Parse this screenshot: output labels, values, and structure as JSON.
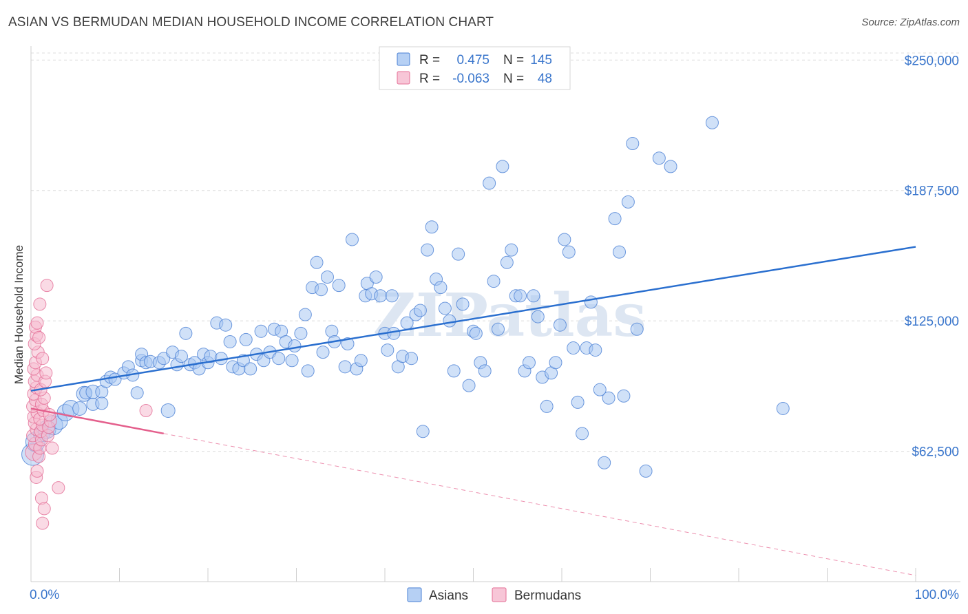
{
  "title": "ASIAN VS BERMUDAN MEDIAN HOUSEHOLD INCOME CORRELATION CHART",
  "source": "Source: ZipAtlas.com",
  "watermark": "ZIPatlas",
  "colors": {
    "asian_fill": "#a9c8f2",
    "asian_stroke": "#4a80d4",
    "asian_line": "#2a6fcf",
    "bermudan_fill": "#f6bcd0",
    "bermudan_stroke": "#e46e96",
    "bermudan_line": "#e45f8c",
    "tick_label": "#3a76cc",
    "grid": "#dcdcdc"
  },
  "legend_top": [
    {
      "swatch": "asian",
      "r_label": "R =",
      "r_value": "0.475",
      "n_label": "N =",
      "n_value": "145"
    },
    {
      "swatch": "bermudan",
      "r_label": "R =",
      "r_value": "-0.063",
      "n_label": "N =",
      "n_value": "48"
    }
  ],
  "legend_bottom": [
    {
      "swatch": "asian",
      "label": "Asians"
    },
    {
      "swatch": "bermudan",
      "label": "Bermudans"
    }
  ],
  "chart_data": {
    "type": "scatter",
    "title": "ASIAN VS BERMUDAN MEDIAN HOUSEHOLD INCOME CORRELATION CHART",
    "xlabel": "",
    "ylabel": "Median Household Income",
    "xlim": [
      0,
      100
    ],
    "ylim": [
      0,
      260000
    ],
    "x_tick_labels": [
      "0.0%",
      "100.0%"
    ],
    "y_ticks": [
      62500,
      125000,
      187500,
      250000
    ],
    "y_tick_labels": [
      "$62,500",
      "$125,000",
      "$187,500",
      "$250,000"
    ],
    "grid": true,
    "legend_position": "top-center",
    "series": [
      {
        "name": "Asians",
        "r": 0.475,
        "n": 145,
        "trend": {
          "x": [
            0,
            100
          ],
          "y": [
            91500,
            160500
          ]
        },
        "points": [
          [
            0.2,
            61000,
            16
          ],
          [
            0.5,
            67000,
            14
          ],
          [
            1.2,
            71000,
            12
          ],
          [
            1.8,
            73000,
            13
          ],
          [
            2.5,
            75000,
            14
          ],
          [
            3.2,
            77000,
            12
          ],
          [
            3.9,
            81000,
            12
          ],
          [
            4.5,
            83000,
            12
          ],
          [
            5.5,
            83000,
            10
          ],
          [
            6.0,
            90000,
            11
          ],
          [
            6.2,
            90500,
            9
          ],
          [
            7.0,
            91000,
            10
          ],
          [
            8.0,
            91000,
            9
          ],
          [
            7.0,
            85000,
            9
          ],
          [
            8.0,
            85500,
            9
          ],
          [
            8.5,
            96000,
            9
          ],
          [
            9.0,
            98000,
            9
          ],
          [
            9.5,
            97000,
            9
          ],
          [
            10.5,
            100000,
            9
          ],
          [
            11.0,
            103000,
            9
          ],
          [
            11.5,
            99000,
            9
          ],
          [
            12.5,
            106000,
            9
          ],
          [
            12.0,
            90500,
            9
          ],
          [
            12.5,
            109000,
            9
          ],
          [
            13.0,
            105000,
            9
          ],
          [
            13.5,
            105500,
            9
          ],
          [
            14.5,
            105000,
            9
          ],
          [
            15.0,
            107000,
            9
          ],
          [
            15.5,
            82000,
            10
          ],
          [
            16.0,
            110000,
            9
          ],
          [
            16.5,
            104000,
            9
          ],
          [
            17.0,
            108000,
            9
          ],
          [
            17.5,
            119000,
            9
          ],
          [
            18.0,
            104000,
            9
          ],
          [
            18.5,
            105000,
            9
          ],
          [
            19.0,
            102000,
            9
          ],
          [
            19.5,
            109000,
            9
          ],
          [
            20.0,
            105000,
            9
          ],
          [
            20.3,
            108000,
            9
          ],
          [
            21.0,
            124000,
            9
          ],
          [
            21.5,
            107000,
            9
          ],
          [
            22.0,
            123000,
            9
          ],
          [
            22.5,
            115000,
            9
          ],
          [
            22.8,
            103000,
            9
          ],
          [
            23.5,
            102000,
            9
          ],
          [
            24.0,
            106000,
            9
          ],
          [
            24.3,
            116000,
            9
          ],
          [
            24.8,
            102000,
            9
          ],
          [
            25.5,
            109000,
            9
          ],
          [
            26.0,
            120000,
            9
          ],
          [
            26.3,
            106000,
            9
          ],
          [
            27.0,
            110000,
            9
          ],
          [
            27.5,
            121000,
            9
          ],
          [
            28.0,
            107000,
            9
          ],
          [
            28.3,
            120000,
            9
          ],
          [
            28.8,
            115000,
            9
          ],
          [
            29.5,
            106000,
            9
          ],
          [
            29.8,
            113000,
            9
          ],
          [
            30.5,
            119000,
            9
          ],
          [
            31.0,
            128000,
            9
          ],
          [
            31.3,
            101000,
            9
          ],
          [
            31.8,
            141000,
            9
          ],
          [
            32.3,
            153000,
            9
          ],
          [
            32.8,
            140000,
            9
          ],
          [
            33.0,
            110000,
            9
          ],
          [
            33.5,
            146000,
            9
          ],
          [
            34.0,
            120000,
            9
          ],
          [
            34.3,
            115000,
            9
          ],
          [
            34.8,
            142000,
            9
          ],
          [
            35.5,
            103000,
            9
          ],
          [
            35.8,
            114000,
            9
          ],
          [
            36.3,
            164000,
            9
          ],
          [
            36.8,
            102000,
            9
          ],
          [
            37.3,
            106000,
            9
          ],
          [
            37.8,
            137000,
            9
          ],
          [
            38.0,
            143000,
            9
          ],
          [
            38.5,
            138000,
            9
          ],
          [
            39.0,
            146000,
            9
          ],
          [
            39.5,
            137000,
            9
          ],
          [
            40.0,
            119000,
            9
          ],
          [
            40.3,
            111000,
            9
          ],
          [
            40.8,
            137000,
            9
          ],
          [
            41.0,
            119000,
            9
          ],
          [
            41.5,
            103000,
            9
          ],
          [
            42.0,
            108000,
            9
          ],
          [
            42.5,
            124000,
            9
          ],
          [
            43.0,
            107000,
            9
          ],
          [
            43.5,
            128000,
            9
          ],
          [
            44.0,
            130000,
            9
          ],
          [
            44.3,
            72000,
            9
          ],
          [
            44.8,
            159000,
            9
          ],
          [
            45.3,
            170000,
            9
          ],
          [
            45.8,
            145000,
            9
          ],
          [
            46.3,
            141000,
            9
          ],
          [
            46.8,
            131000,
            9
          ],
          [
            47.3,
            125000,
            9
          ],
          [
            47.8,
            101000,
            9
          ],
          [
            48.3,
            157000,
            9
          ],
          [
            48.8,
            133000,
            9
          ],
          [
            49.5,
            94000,
            9
          ],
          [
            50.0,
            120000,
            9
          ],
          [
            50.3,
            119000,
            9
          ],
          [
            50.8,
            105000,
            9
          ],
          [
            51.3,
            101000,
            9
          ],
          [
            51.8,
            191000,
            9
          ],
          [
            52.3,
            144000,
            9
          ],
          [
            52.8,
            121000,
            9
          ],
          [
            53.3,
            199000,
            9
          ],
          [
            53.8,
            153000,
            9
          ],
          [
            54.3,
            159000,
            9
          ],
          [
            54.8,
            137000,
            9
          ],
          [
            55.3,
            137000,
            9
          ],
          [
            55.8,
            101000,
            9
          ],
          [
            56.3,
            105000,
            9
          ],
          [
            56.8,
            137000,
            9
          ],
          [
            57.3,
            127000,
            9
          ],
          [
            57.8,
            98000,
            9
          ],
          [
            58.3,
            84000,
            9
          ],
          [
            58.8,
            100000,
            9
          ],
          [
            59.3,
            105000,
            9
          ],
          [
            59.8,
            123000,
            9
          ],
          [
            60.3,
            164000,
            9
          ],
          [
            60.8,
            158000,
            9
          ],
          [
            61.3,
            112000,
            9
          ],
          [
            61.8,
            86000,
            9
          ],
          [
            62.3,
            71000,
            9
          ],
          [
            62.8,
            112000,
            9
          ],
          [
            63.3,
            134000,
            9
          ],
          [
            63.8,
            111000,
            9
          ],
          [
            64.3,
            92000,
            9
          ],
          [
            64.8,
            57000,
            9
          ],
          [
            65.3,
            88000,
            9
          ],
          [
            66.0,
            174000,
            9
          ],
          [
            66.5,
            158000,
            9
          ],
          [
            67.0,
            89000,
            9
          ],
          [
            67.5,
            182000,
            9
          ],
          [
            68.0,
            210000,
            9
          ],
          [
            68.5,
            121000,
            9
          ],
          [
            69.5,
            53000,
            9
          ],
          [
            71.0,
            203000,
            9
          ],
          [
            72.3,
            199000,
            9
          ],
          [
            77.0,
            220000,
            9
          ],
          [
            85.0,
            83000,
            9
          ]
        ]
      },
      {
        "name": "Bermudans",
        "r": -0.063,
        "n": 48,
        "trend": {
          "x": [
            0,
            15
          ],
          "y": [
            83000,
            71000
          ]
        },
        "trend_extension": {
          "x": [
            15,
            100
          ],
          "y": [
            71000,
            3000
          ]
        },
        "points": [
          [
            0.3,
            62000,
            12
          ],
          [
            0.5,
            66000,
            10
          ],
          [
            0.2,
            70000,
            9
          ],
          [
            0.6,
            73000,
            9
          ],
          [
            0.4,
            76000,
            9
          ],
          [
            0.3,
            79000,
            9
          ],
          [
            0.7,
            81000,
            9
          ],
          [
            0.2,
            84000,
            9
          ],
          [
            0.5,
            87000,
            9
          ],
          [
            0.3,
            90000,
            9
          ],
          [
            0.6,
            93000,
            9
          ],
          [
            0.4,
            96000,
            9
          ],
          [
            0.7,
            99000,
            9
          ],
          [
            0.3,
            102000,
            9
          ],
          [
            0.5,
            105000,
            9
          ],
          [
            0.8,
            110000,
            9
          ],
          [
            0.4,
            114000,
            9
          ],
          [
            0.6,
            118000,
            9
          ],
          [
            0.5,
            122000,
            9
          ],
          [
            0.7,
            124000,
            9
          ],
          [
            0.9,
            60000,
            9
          ],
          [
            1.0,
            64000,
            9
          ],
          [
            1.2,
            68000,
            9
          ],
          [
            1.1,
            72000,
            9
          ],
          [
            1.3,
            75000,
            9
          ],
          [
            1.0,
            78000,
            9
          ],
          [
            1.4,
            82000,
            9
          ],
          [
            1.2,
            85000,
            9
          ],
          [
            1.5,
            88000,
            9
          ],
          [
            1.1,
            92000,
            9
          ],
          [
            1.6,
            96000,
            9
          ],
          [
            1.3,
            107000,
            9
          ],
          [
            1.0,
            133000,
            9
          ],
          [
            1.8,
            142000,
            9
          ],
          [
            1.9,
            70000,
            9
          ],
          [
            2.0,
            74000,
            9
          ],
          [
            2.2,
            77000,
            9
          ],
          [
            2.1,
            80000,
            9
          ],
          [
            2.4,
            64000,
            9
          ],
          [
            0.6,
            50000,
            9
          ],
          [
            0.7,
            53000,
            9
          ],
          [
            1.2,
            40000,
            9
          ],
          [
            1.5,
            35000,
            9
          ],
          [
            1.3,
            28000,
            9
          ],
          [
            3.1,
            45000,
            9
          ],
          [
            13.0,
            82000,
            9
          ],
          [
            0.9,
            117000,
            9
          ],
          [
            1.7,
            100000,
            9
          ]
        ]
      }
    ]
  }
}
